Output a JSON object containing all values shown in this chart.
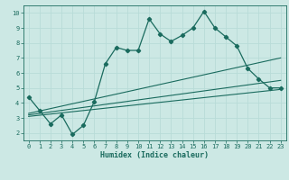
{
  "xlabel": "Humidex (Indice chaleur)",
  "xlim": [
    -0.5,
    23.5
  ],
  "ylim": [
    1.5,
    10.5
  ],
  "xticks": [
    0,
    1,
    2,
    3,
    4,
    5,
    6,
    7,
    8,
    9,
    10,
    11,
    12,
    13,
    14,
    15,
    16,
    17,
    18,
    19,
    20,
    21,
    22,
    23
  ],
  "yticks": [
    2,
    3,
    4,
    5,
    6,
    7,
    8,
    9,
    10
  ],
  "bg_color": "#cce8e4",
  "line_color": "#1a6b5e",
  "grid_color": "#b8dcd8",
  "main_line_x": [
    0,
    1,
    2,
    3,
    4,
    5,
    6,
    7,
    8,
    9,
    10,
    11,
    12,
    13,
    14,
    15,
    16,
    17,
    18,
    19,
    20,
    21,
    22,
    23
  ],
  "main_line_y": [
    4.4,
    3.5,
    2.6,
    3.2,
    1.9,
    2.5,
    4.1,
    6.6,
    7.7,
    7.5,
    7.5,
    9.6,
    8.6,
    8.1,
    8.5,
    9.0,
    10.1,
    9.0,
    8.4,
    7.8,
    6.3,
    5.6,
    5.0,
    5.0
  ],
  "trend_lines": [
    {
      "x0": 0,
      "y0": 3.3,
      "x1": 23,
      "y1": 7.0
    },
    {
      "x0": 0,
      "y0": 3.2,
      "x1": 23,
      "y1": 5.5
    },
    {
      "x0": 0,
      "y0": 3.1,
      "x1": 23,
      "y1": 4.9
    }
  ]
}
